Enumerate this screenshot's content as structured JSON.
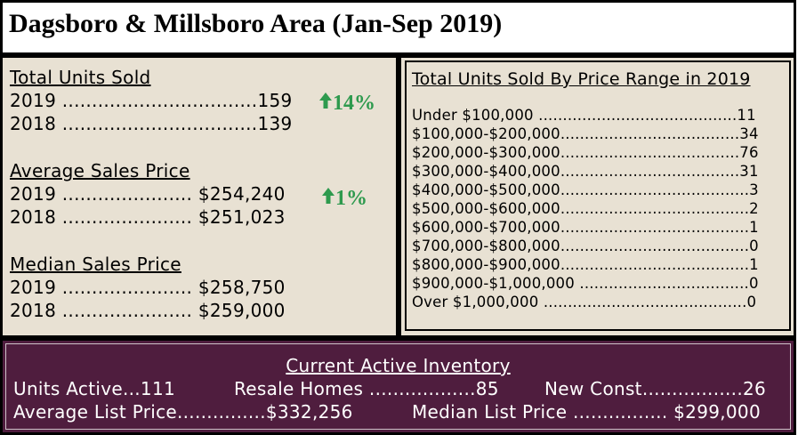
{
  "header": {
    "title": "Dagsboro & Millsboro Area (Jan-Sep 2019)"
  },
  "left": {
    "units_sold": {
      "title": "Total Units Sold",
      "row_2019": "2019 .................................159",
      "row_2018": "2018 .................................139",
      "change": "14%"
    },
    "avg_price": {
      "title": "Average Sales Price",
      "row_2019": "2019 ...................... $254,240",
      "row_2018": "2018 ...................... $251,023",
      "change": "1%"
    },
    "median_price": {
      "title": "Median Sales Price",
      "row_2019": "2019 ...................... $258,750",
      "row_2018": "2018 ...................... $259,000"
    },
    "up_color": "#2e9a4e"
  },
  "right": {
    "title": "Total Units Sold By Price Range in 2019",
    "rows": [
      "Under $100,000 .........................................11",
      "$100,000-$200,000.....................................34",
      "$200,000-$300,000.....................................76",
      "$300,000-$400,000.....................................31",
      "$400,000-$500,000.......................................3",
      "$500,000-$600,000.......................................2",
      "$600,000-$700,000.......................................1",
      "$700,000-$800,000.......................................0",
      "$800,000-$900,000.......................................1",
      "$900,000-$1,000,000 ...................................0",
      "Over $1,000,000 ..........................................0"
    ]
  },
  "footer": {
    "title": "Current Active Inventory",
    "units_active": "Units Active...111",
    "resale_homes": "Resale Homes ..................85",
    "new_const": "New Const.................26",
    "avg_list": "Average List Price...............$332,256",
    "median_list": "Median List Price ................ $299,000",
    "bg_color": "#4f1d3e"
  }
}
